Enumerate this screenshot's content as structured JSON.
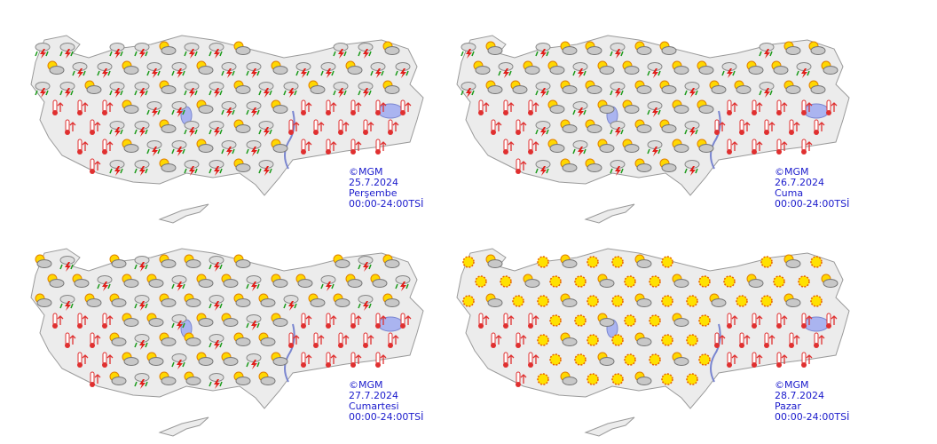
{
  "panels": [
    {
      "credit": "©MGM",
      "date": "25.7.2024",
      "day": "Perşembe",
      "period": "00:00-24:00TSİ"
    },
    {
      "credit": "©MGM",
      "date": "26.7.2024",
      "day": "Cuma",
      "period": "00:00-24:00TSİ"
    },
    {
      "credit": "©MGM",
      "date": "27.7.2024",
      "day": "Cumartesi",
      "period": "00:00-24:00TSİ"
    },
    {
      "credit": "©MGM",
      "date": "28.7.2024",
      "day": "Pazar",
      "period": "00:00-24:00TSİ"
    }
  ]
}
